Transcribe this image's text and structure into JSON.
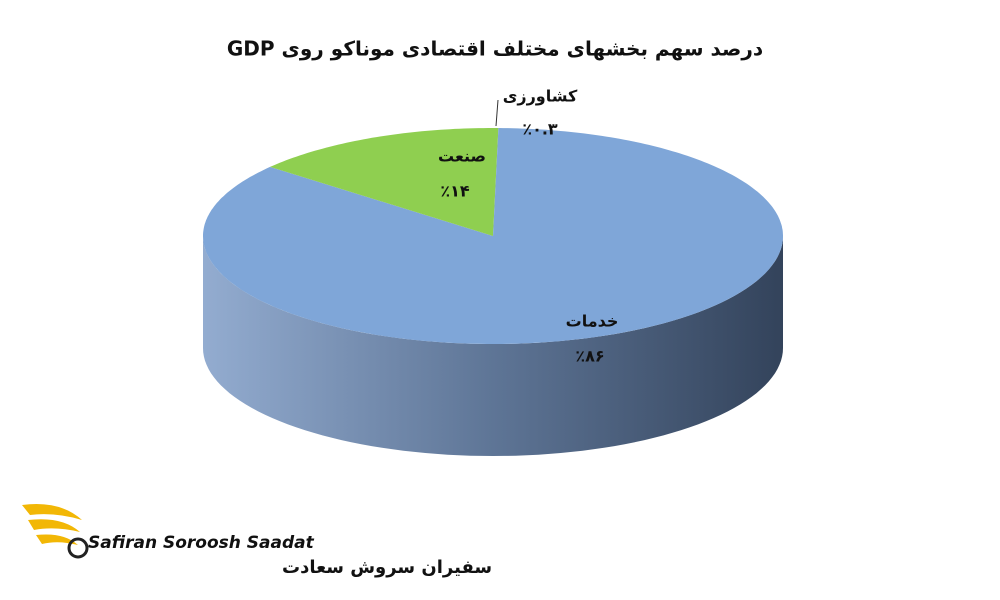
{
  "chart_data": {
    "type": "pie3d",
    "title": "درصد سهم بخشهای مختلف اقتصادی موناکو روی GDP",
    "categories": [
      "کشاورزی",
      "خدمات",
      "صنعت"
    ],
    "values": [
      0.3,
      86,
      14
    ],
    "value_labels": [
      "٪۰.۳",
      "٪۸۶",
      "٪۱۴"
    ],
    "colors": [
      "#8fcf50",
      "#7fa6d8",
      "#8fcf50"
    ],
    "start_angle": 0,
    "direction": "clockwise"
  },
  "logo": {
    "name_en": "Safiran Soroosh Saadat",
    "name_fa": "سفیران سروش سعادت"
  }
}
